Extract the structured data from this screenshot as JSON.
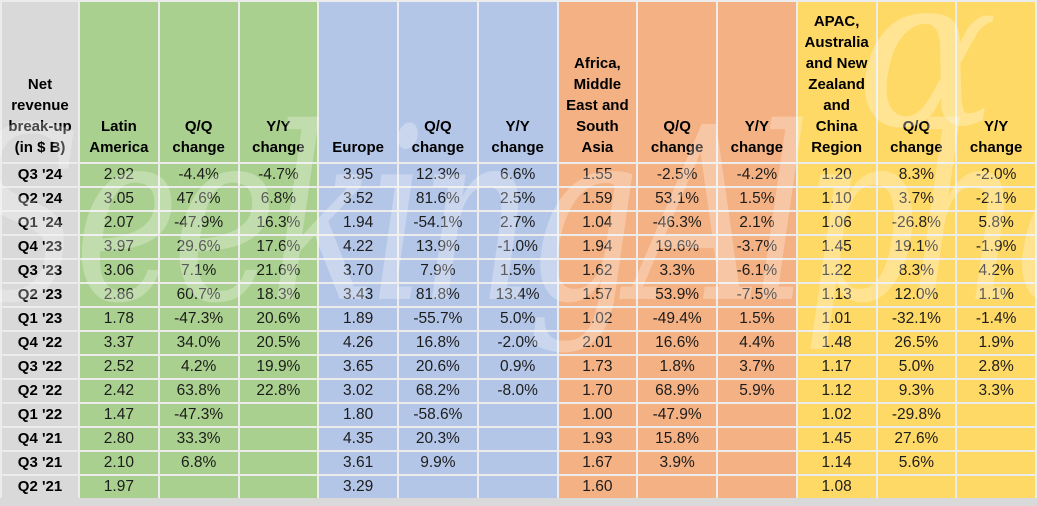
{
  "chart_data": {
    "type": "table",
    "title": "Net revenue break-up (in $ B)",
    "corner_header_display": "Net\nrevenue\nbreak-up\n(in $ B)",
    "row_label_color": "#d9d9d9",
    "subcolumn_headers": {
      "qq": "Q/Q\nchange",
      "yy": "Y/Y\nchange"
    },
    "column_groups": [
      {
        "region": "Latin America",
        "header_display": "Latin\nAmerica",
        "color": "#a9d08e"
      },
      {
        "region": "Europe",
        "header_display": "Europe",
        "color": "#b4c6e7"
      },
      {
        "region": "Africa, Middle East and South Asia",
        "header_display": "Africa,\nMiddle\nEast and\nSouth\nAsia",
        "color": "#f4b183"
      },
      {
        "region": "APAC, Australia and New Zealand and China Region",
        "header_display": "APAC,\nAustralia\nand New\nZealand\nand\nChina\nRegion",
        "color": "#ffd966"
      }
    ],
    "columns_per_group": [
      "value",
      "Q/Q change",
      "Y/Y change"
    ],
    "rows": [
      {
        "quarter": "Q3 '24",
        "values": [
          "2.92",
          "-4.4%",
          "-4.7%",
          "3.95",
          "12.3%",
          "6.6%",
          "1.55",
          "-2.5%",
          "-4.2%",
          "1.20",
          "8.3%",
          "-2.0%"
        ]
      },
      {
        "quarter": "Q2 '24",
        "values": [
          "3.05",
          "47.6%",
          "6.8%",
          "3.52",
          "81.6%",
          "2.5%",
          "1.59",
          "53.1%",
          "1.5%",
          "1.10",
          "3.7%",
          "-2.1%"
        ]
      },
      {
        "quarter": "Q1 '24",
        "values": [
          "2.07",
          "-47.9%",
          "16.3%",
          "1.94",
          "-54.1%",
          "2.7%",
          "1.04",
          "-46.3%",
          "2.1%",
          "1.06",
          "-26.8%",
          "5.8%"
        ]
      },
      {
        "quarter": "Q4 '23",
        "values": [
          "3.97",
          "29.6%",
          "17.6%",
          "4.22",
          "13.9%",
          "-1.0%",
          "1.94",
          "19.6%",
          "-3.7%",
          "1.45",
          "19.1%",
          "-1.9%"
        ]
      },
      {
        "quarter": "Q3 '23",
        "values": [
          "3.06",
          "7.1%",
          "21.6%",
          "3.70",
          "7.9%",
          "1.5%",
          "1.62",
          "3.3%",
          "-6.1%",
          "1.22",
          "8.3%",
          "4.2%"
        ]
      },
      {
        "quarter": "Q2 '23",
        "values": [
          "2.86",
          "60.7%",
          "18.3%",
          "3.43",
          "81.8%",
          "13.4%",
          "1.57",
          "53.9%",
          "-7.5%",
          "1.13",
          "12.0%",
          "1.1%"
        ]
      },
      {
        "quarter": "Q1 '23",
        "values": [
          "1.78",
          "-47.3%",
          "20.6%",
          "1.89",
          "-55.7%",
          "5.0%",
          "1.02",
          "-49.4%",
          "1.5%",
          "1.01",
          "-32.1%",
          "-1.4%"
        ]
      },
      {
        "quarter": "Q4 '22",
        "values": [
          "3.37",
          "34.0%",
          "20.5%",
          "4.26",
          "16.8%",
          "-2.0%",
          "2.01",
          "16.6%",
          "4.4%",
          "1.48",
          "26.5%",
          "1.9%"
        ]
      },
      {
        "quarter": "Q3 '22",
        "values": [
          "2.52",
          "4.2%",
          "19.9%",
          "3.65",
          "20.6%",
          "0.9%",
          "1.73",
          "1.8%",
          "3.7%",
          "1.17",
          "5.0%",
          "2.8%"
        ]
      },
      {
        "quarter": "Q2 '22",
        "values": [
          "2.42",
          "63.8%",
          "22.8%",
          "3.02",
          "68.2%",
          "-8.0%",
          "1.70",
          "68.9%",
          "5.9%",
          "1.12",
          "9.3%",
          "3.3%"
        ]
      },
      {
        "quarter": "Q1 '22",
        "values": [
          "1.47",
          "-47.3%",
          "",
          "1.80",
          "-58.6%",
          "",
          "1.00",
          "-47.9%",
          "",
          "1.02",
          "-29.8%",
          ""
        ]
      },
      {
        "quarter": "Q4 '21",
        "values": [
          "2.80",
          "33.3%",
          "",
          "4.35",
          "20.3%",
          "",
          "1.93",
          "15.8%",
          "",
          "1.45",
          "27.6%",
          ""
        ]
      },
      {
        "quarter": "Q3 '21",
        "values": [
          "2.10",
          "6.8%",
          "",
          "3.61",
          "9.9%",
          "",
          "1.67",
          "3.9%",
          "",
          "1.14",
          "5.6%",
          ""
        ]
      },
      {
        "quarter": "Q2 '21",
        "values": [
          "1.97",
          "",
          "",
          "3.29",
          "",
          "",
          "1.60",
          "",
          "",
          "1.08",
          "",
          ""
        ]
      }
    ]
  },
  "watermark": {
    "text": "SeekingAlpha",
    "symbol": "α"
  }
}
